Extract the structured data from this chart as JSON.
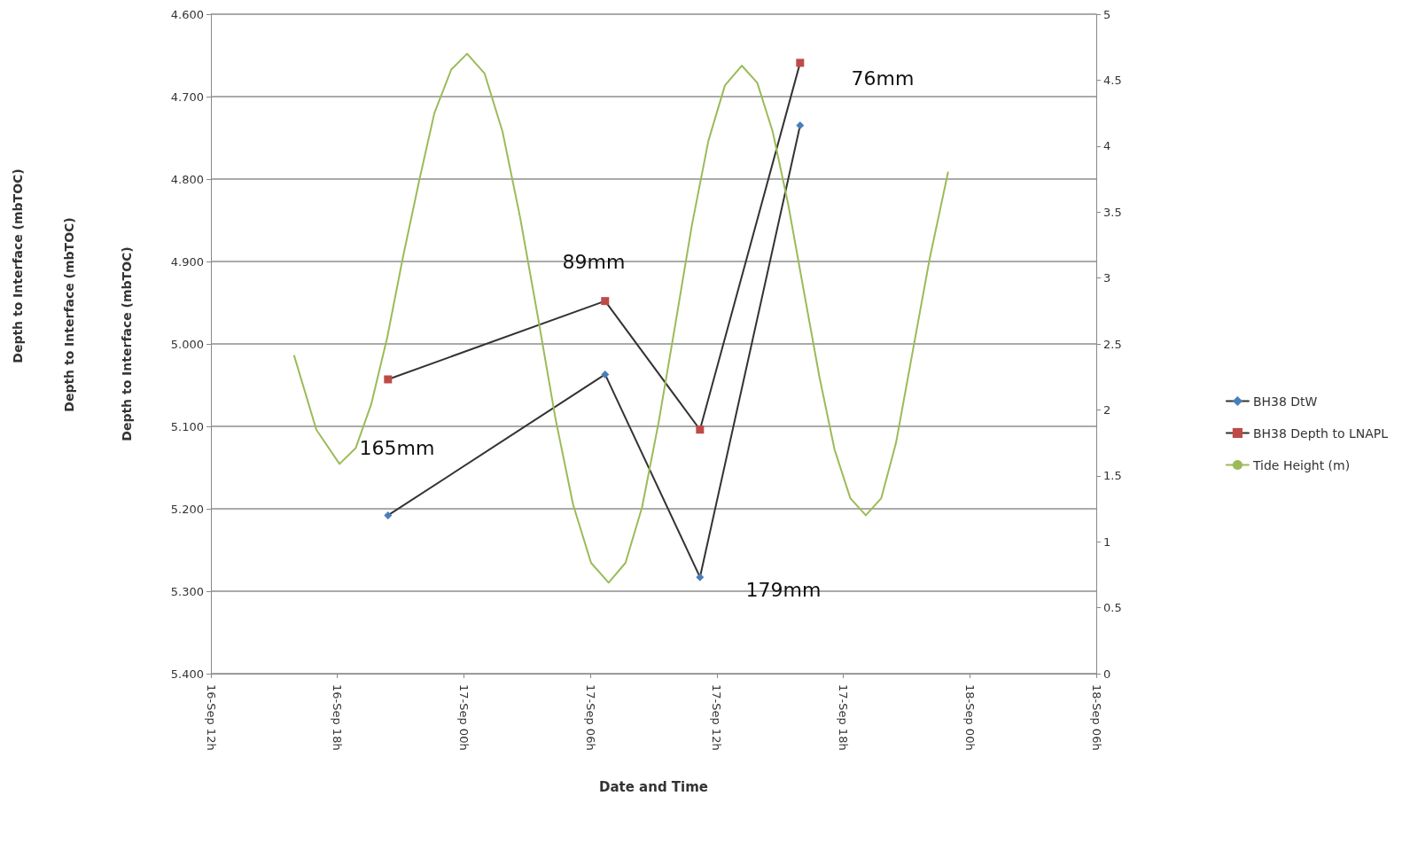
{
  "chart_data": {
    "type": "line",
    "xlabel": "Date and Time",
    "ylabel": "Depth to Interface (mbTOC)",
    "xlim": [
      "--09-16T12:00",
      "--09-18T06:00"
    ],
    "xticks": [
      {
        "value": "--09-16T12:00",
        "label": "16-Sep 12h"
      },
      {
        "value": "--09-16T18:00",
        "label": "16-Sep 18h"
      },
      {
        "value": "--09-17T00:00",
        "label": "17-Sep 00h"
      },
      {
        "value": "--09-17T06:00",
        "label": "17-Sep 06h"
      },
      {
        "value": "--09-17T12:00",
        "label": "17-Sep 12h"
      },
      {
        "value": "--09-17T18:00",
        "label": "17-Sep 18h"
      },
      {
        "value": "--09-18T00:00",
        "label": "18-Sep 00h"
      },
      {
        "value": "--09-18T06:00",
        "label": "18-Sep 06h"
      }
    ],
    "ylim": [
      5.4,
      4.6
    ],
    "yticks": [
      {
        "value": 4.6,
        "label": "4.600"
      },
      {
        "value": 4.7,
        "label": "4.700"
      },
      {
        "value": 4.8,
        "label": "4.800"
      },
      {
        "value": 4.9,
        "label": "4.900"
      },
      {
        "value": 5.0,
        "label": "5.000"
      },
      {
        "value": 5.1,
        "label": "5.100"
      },
      {
        "value": 5.2,
        "label": "5.200"
      },
      {
        "value": 5.3,
        "label": "5.300"
      },
      {
        "value": 5.4,
        "label": "5.400"
      }
    ],
    "y2lim": [
      0,
      5
    ],
    "y2ticks": [
      0,
      0.5,
      1,
      1.5,
      2,
      2.5,
      3,
      3.5,
      4,
      4.5,
      5
    ],
    "grid": "y",
    "legend": "right",
    "series": [
      {
        "name": "BH38 DtW",
        "color": "#4a7ebb",
        "marker": "diamond",
        "x": [
          "--09-16T20:24",
          "--09-17T06:42",
          "--09-17T11:12",
          "--09-17T15:57"
        ],
        "values": [
          5.208,
          5.037,
          5.283,
          4.735
        ]
      },
      {
        "name": "BH38 Depth to LNAPL",
        "color": "#be4b48",
        "marker": "square",
        "x": [
          "--09-16T20:24",
          "--09-17T06:42",
          "--09-17T11:12",
          "--09-17T15:57"
        ],
        "values": [
          5.043,
          4.948,
          5.104,
          4.659
        ]
      },
      {
        "name": "Tide Height (m)",
        "color": "#9bbb59",
        "marker": "none",
        "axis": "y2",
        "x": [
          "--09-16T15:57",
          "--09-16T17:00",
          "--09-16T18:06",
          "--09-16T18:52",
          "--09-16T19:36",
          "--09-16T20:22",
          "--09-16T21:06",
          "--09-16T21:53",
          "--09-16T22:36",
          "--09-16T23:24",
          "--09-17T00:09",
          "--09-17T00:59",
          "--09-17T01:50",
          "--09-17T02:40",
          "--09-17T03:31",
          "--09-17T04:21",
          "--09-17T05:11",
          "--09-17T06:02",
          "--09-17T06:52",
          "--09-17T07:40",
          "--09-17T08:27",
          "--09-17T09:14",
          "--09-17T10:02",
          "--09-17T10:49",
          "--09-17T11:36",
          "--09-17T12:23",
          "--09-17T13:11",
          "--09-17T13:55",
          "--09-17T14:39",
          "--09-17T15:23",
          "--09-17T16:07",
          "--09-17T16:52",
          "--09-17T17:35",
          "--09-17T18:20",
          "--09-17T19:04",
          "--09-17T19:48",
          "--09-17T20:30",
          "--09-17T21:18",
          "--09-17T22:06",
          "--09-17T22:58"
        ],
        "values": [
          2.41,
          1.85,
          1.59,
          1.71,
          2.04,
          2.55,
          3.15,
          3.74,
          4.25,
          4.58,
          4.7,
          4.55,
          4.11,
          3.46,
          2.7,
          1.93,
          1.28,
          0.84,
          0.69,
          0.84,
          1.26,
          1.9,
          2.65,
          3.4,
          4.04,
          4.46,
          4.61,
          4.48,
          4.11,
          3.56,
          2.91,
          2.25,
          1.7,
          1.33,
          1.2,
          1.33,
          1.75,
          2.45,
          3.15,
          3.8
        ]
      }
    ],
    "annotations": [
      "Depth to Interface (mbTOC)",
      "Depth to Interface (mbTOC)",
      "165mm",
      "89mm",
      "179mm",
      "76mm"
    ]
  }
}
